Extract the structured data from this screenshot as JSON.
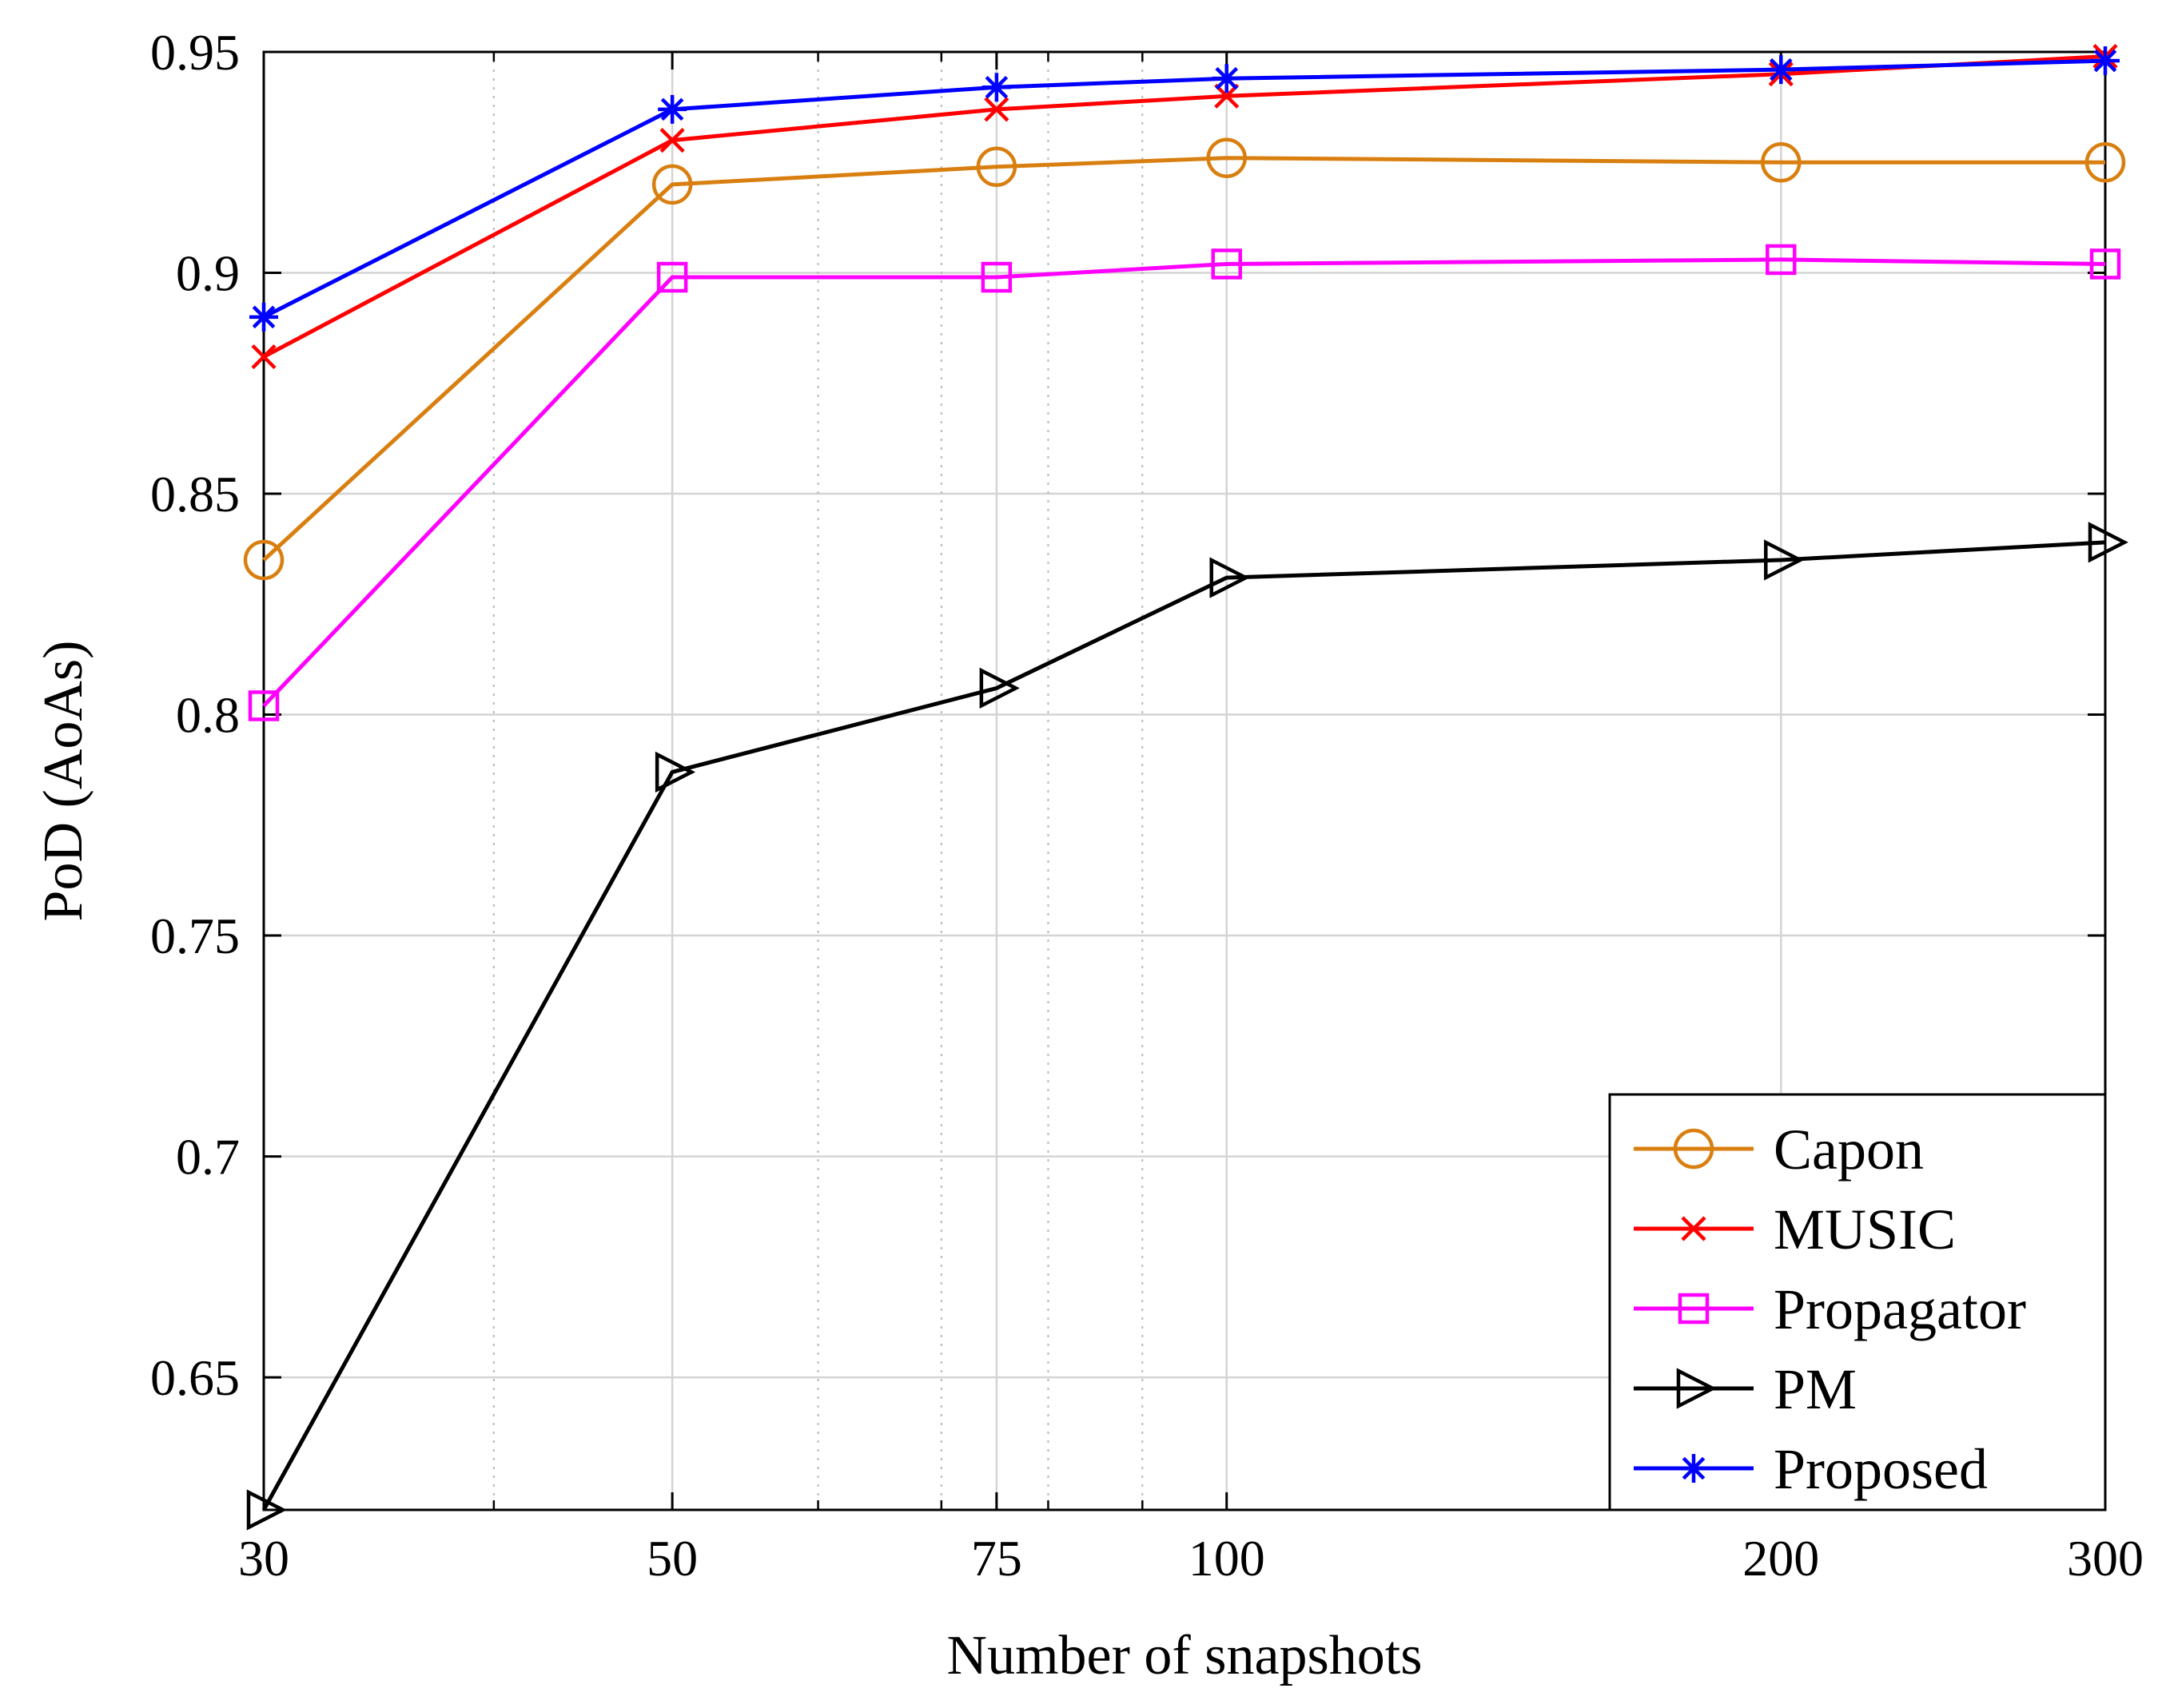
{
  "chart_data": {
    "type": "line",
    "title": "",
    "xlabel": "Number of snapshots",
    "ylabel": "PoD (AoAs)",
    "x_scale": "log",
    "xlim": [
      30,
      300
    ],
    "ylim": [
      0.62,
      0.95
    ],
    "xticks": [
      30,
      50,
      75,
      100,
      200,
      300
    ],
    "xtick_labels": [
      "30",
      "50",
      "75",
      "100",
      "200",
      "300"
    ],
    "x_minor_ticks": [
      40,
      60,
      70,
      80,
      90
    ],
    "yticks": [
      0.65,
      0.7,
      0.75,
      0.8,
      0.85,
      0.9,
      0.95
    ],
    "ytick_labels": [
      "0.65",
      "0.7",
      "0.75",
      "0.8",
      "0.85",
      "0.9",
      "0.95"
    ],
    "grid": true,
    "legend_position": "bottom-right",
    "x": [
      30,
      50,
      75,
      100,
      200,
      300
    ],
    "series": [
      {
        "name": "Capon",
        "color": "#D97F10",
        "marker": "circle",
        "values": [
          0.835,
          0.92,
          0.924,
          0.926,
          0.925,
          0.925
        ]
      },
      {
        "name": "MUSIC",
        "color": "#FF0000",
        "marker": "x",
        "values": [
          0.881,
          0.93,
          0.937,
          0.94,
          0.945,
          0.949
        ]
      },
      {
        "name": "Propagator",
        "color": "#FF00FF",
        "marker": "square",
        "values": [
          0.802,
          0.899,
          0.899,
          0.902,
          0.903,
          0.902
        ]
      },
      {
        "name": "PM",
        "color": "#000000",
        "marker": "triangle-right",
        "values": [
          0.62,
          0.787,
          0.806,
          0.831,
          0.835,
          0.839
        ]
      },
      {
        "name": "Proposed",
        "color": "#0000FF",
        "marker": "asterisk",
        "values": [
          0.89,
          0.937,
          0.942,
          0.944,
          0.946,
          0.948
        ]
      }
    ]
  }
}
